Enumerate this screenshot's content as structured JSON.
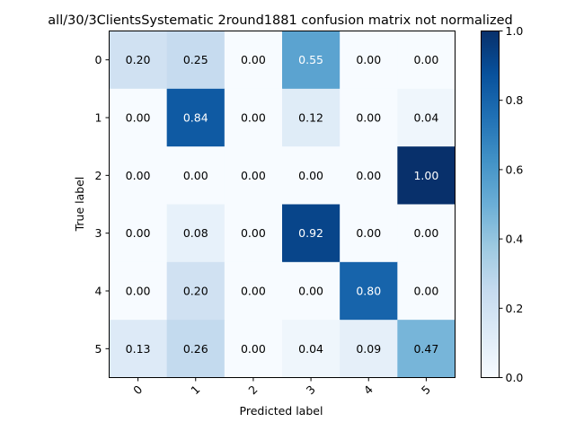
{
  "chart_data": {
    "type": "heatmap",
    "title": "all/30/3ClientsSystematic 2round1881 confusion matrix not normalized",
    "xlabel": "Predicted label",
    "ylabel": "True label",
    "x_categories": [
      "0",
      "1",
      "2",
      "3",
      "4",
      "5"
    ],
    "y_categories": [
      "0",
      "1",
      "2",
      "3",
      "4",
      "5"
    ],
    "matrix": [
      [
        0.2,
        0.25,
        0.0,
        0.55,
        0.0,
        0.0
      ],
      [
        0.0,
        0.84,
        0.0,
        0.12,
        0.0,
        0.04
      ],
      [
        0.0,
        0.0,
        0.0,
        0.0,
        0.0,
        1.0
      ],
      [
        0.0,
        0.08,
        0.0,
        0.92,
        0.0,
        0.0
      ],
      [
        0.0,
        0.2,
        0.0,
        0.0,
        0.8,
        0.0
      ],
      [
        0.13,
        0.26,
        0.0,
        0.04,
        0.09,
        0.47
      ]
    ],
    "labels": [
      [
        "0.20",
        "0.25",
        "0.00",
        "0.55",
        "0.00",
        "0.00"
      ],
      [
        "0.00",
        "0.84",
        "0.00",
        "0.12",
        "0.00",
        "0.04"
      ],
      [
        "0.00",
        "0.00",
        "0.00",
        "0.00",
        "0.00",
        "1.00"
      ],
      [
        "0.00",
        "0.08",
        "0.00",
        "0.92",
        "0.00",
        "0.00"
      ],
      [
        "0.00",
        "0.20",
        "0.00",
        "0.00",
        "0.80",
        "0.00"
      ],
      [
        "0.13",
        "0.26",
        "0.00",
        "0.04",
        "0.09",
        "0.47"
      ]
    ],
    "colormap": "Blues",
    "colorbar": {
      "range": [
        0.0,
        1.0
      ],
      "ticks": [
        "0.0",
        "0.2",
        "0.4",
        "0.6",
        "0.8",
        "1.0"
      ]
    },
    "grid": false
  }
}
